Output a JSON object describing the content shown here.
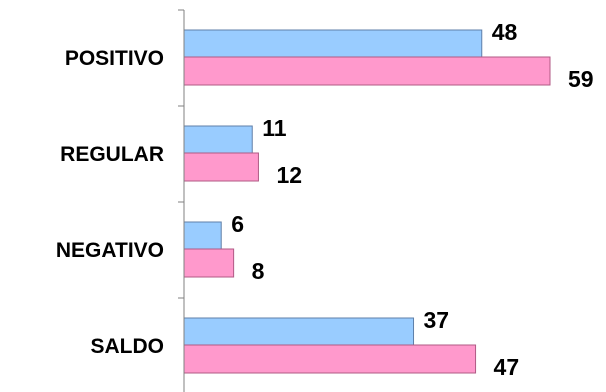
{
  "chart_data": {
    "type": "bar",
    "orientation": "horizontal",
    "categories": [
      "POSITIVO",
      "REGULAR",
      "NEGATIVO",
      "SALDO"
    ],
    "series": [
      {
        "values": [
          48,
          11,
          6,
          37
        ],
        "color": "#99ccff"
      },
      {
        "values": [
          59,
          12,
          8,
          47
        ],
        "color": "#ff99cc"
      }
    ],
    "xlim": [
      0,
      59
    ],
    "grid": false,
    "legend": "none"
  }
}
